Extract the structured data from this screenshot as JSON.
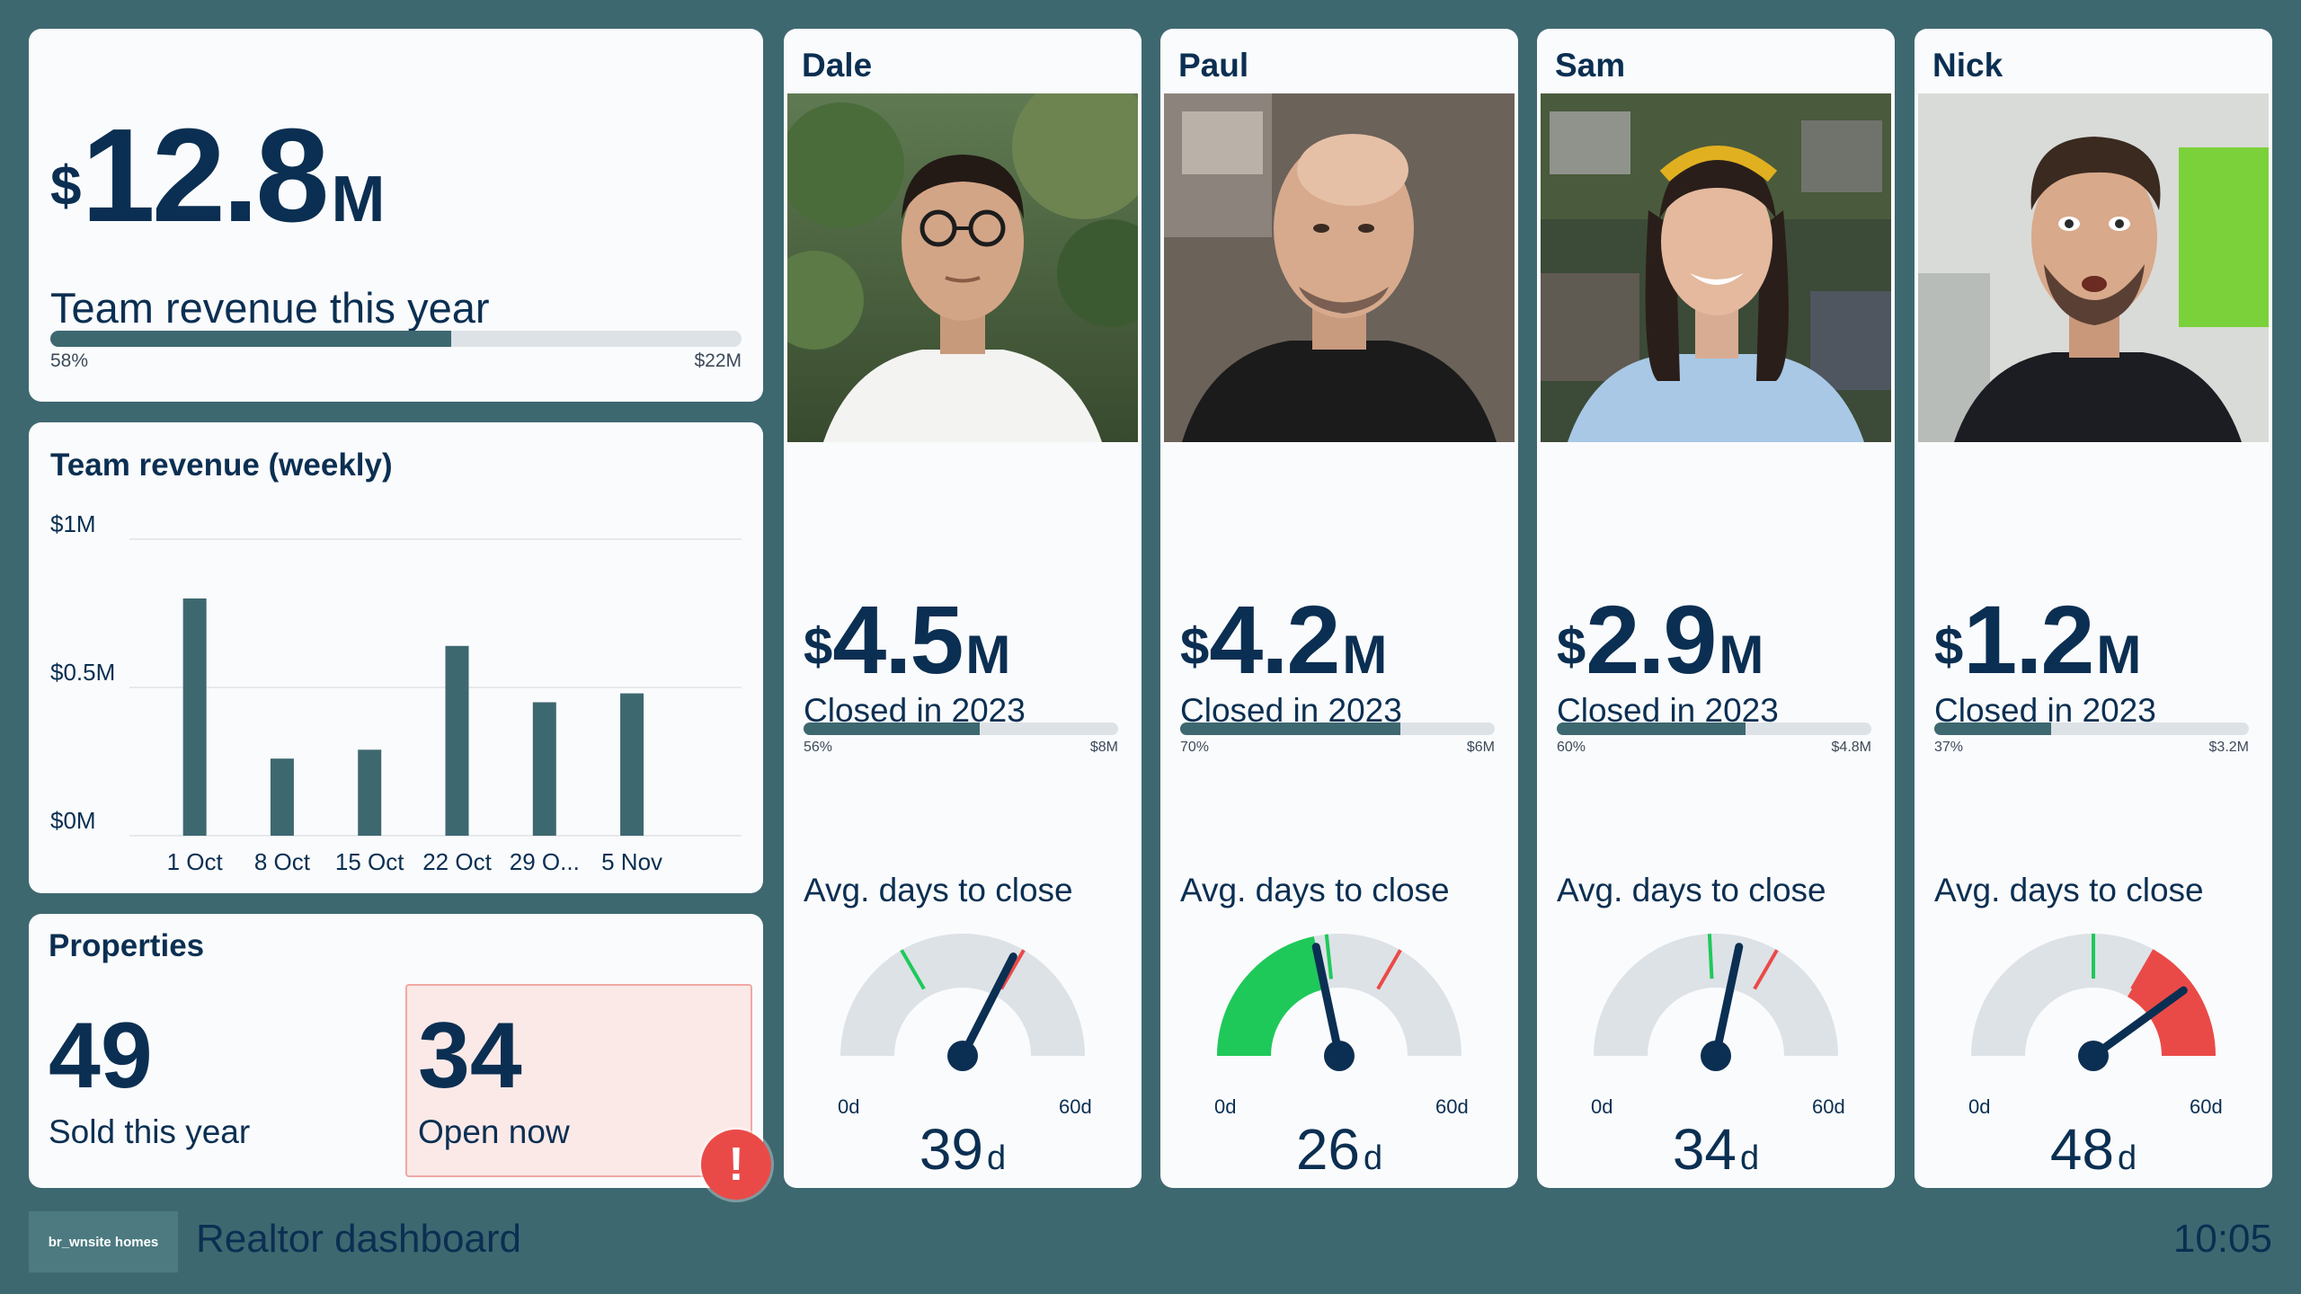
{
  "revenue": {
    "currency": "$",
    "amount": "12.8",
    "unit": "M",
    "label": "Team revenue this year",
    "progress_pct_label": "58%",
    "progress_fraction": 0.58,
    "target_label": "$22M"
  },
  "weekly": {
    "title": "Team revenue (weekly)",
    "chart_data": {
      "type": "bar",
      "title": "Team revenue (weekly)",
      "categories": [
        "1 Oct",
        "8 Oct",
        "15 Oct",
        "22 Oct",
        "29 O...",
        "5 Nov"
      ],
      "values": [
        0.8,
        0.26,
        0.29,
        0.64,
        0.45,
        0.48
      ],
      "ylim": [
        0,
        1
      ],
      "y_tick_labels": [
        "$1M",
        "$0.5M",
        "$0M"
      ],
      "y_tick_values": [
        1,
        0.5,
        0
      ],
      "grid": true,
      "color": "#3e6870"
    }
  },
  "properties": {
    "title": "Properties",
    "sold_count": "49",
    "sold_label": "Sold this year",
    "open_count": "34",
    "open_label": "Open now",
    "alert_glyph": "!",
    "alert_icon": "exclamation-icon"
  },
  "agents": [
    {
      "name": "Dale",
      "currency": "$",
      "amount": "4.5",
      "unit": "M",
      "closed_label": "Closed in 2023",
      "pct_label": "56%",
      "fraction": 0.56,
      "target_label": "$8M",
      "avg_label": "Avg. days to close",
      "gauge_min": "0d",
      "gauge_max": "60d",
      "days_value": "39",
      "days_unit": "d",
      "days": 39,
      "green_mark": 20,
      "red_mark": 40,
      "fill": "none"
    },
    {
      "name": "Paul",
      "currency": "$",
      "amount": "4.2",
      "unit": "M",
      "closed_label": "Closed in 2023",
      "pct_label": "70%",
      "fraction": 0.7,
      "target_label": "$6M",
      "avg_label": "Avg. days to close",
      "gauge_min": "0d",
      "gauge_max": "60d",
      "days_value": "26",
      "days_unit": "d",
      "days": 26,
      "green_mark": 28,
      "red_mark": 40,
      "fill": "green"
    },
    {
      "name": "Sam",
      "currency": "$",
      "amount": "2.9",
      "unit": "M",
      "closed_label": "Closed in 2023",
      "pct_label": "60%",
      "fraction": 0.6,
      "target_label": "$4.8M",
      "avg_label": "Avg. days to close",
      "gauge_min": "0d",
      "gauge_max": "60d",
      "days_value": "34",
      "days_unit": "d",
      "days": 34,
      "green_mark": 29,
      "red_mark": 40,
      "fill": "none"
    },
    {
      "name": "Nick",
      "currency": "$",
      "amount": "1.2",
      "unit": "M",
      "closed_label": "Closed in 2023",
      "pct_label": "37%",
      "fraction": 0.37,
      "target_label": "$3.2M",
      "avg_label": "Avg. days to close",
      "gauge_min": "0d",
      "gauge_max": "60d",
      "days_value": "48",
      "days_unit": "d",
      "days": 48,
      "green_mark": 30,
      "red_mark": 40,
      "fill": "red"
    }
  ],
  "footer": {
    "logo_text": "br_wnsite homes",
    "title": "Realtor dashboard",
    "time": "10:05"
  },
  "colors": {
    "background": "#3e6870",
    "card": "#fafbfc",
    "ink": "#0b2f52",
    "bar_fill": "#3e6870",
    "track": "#dde2e7",
    "gauge_green": "#1ec95a",
    "gauge_red": "#ea4a47",
    "alert_bg": "#fbe9e8"
  }
}
